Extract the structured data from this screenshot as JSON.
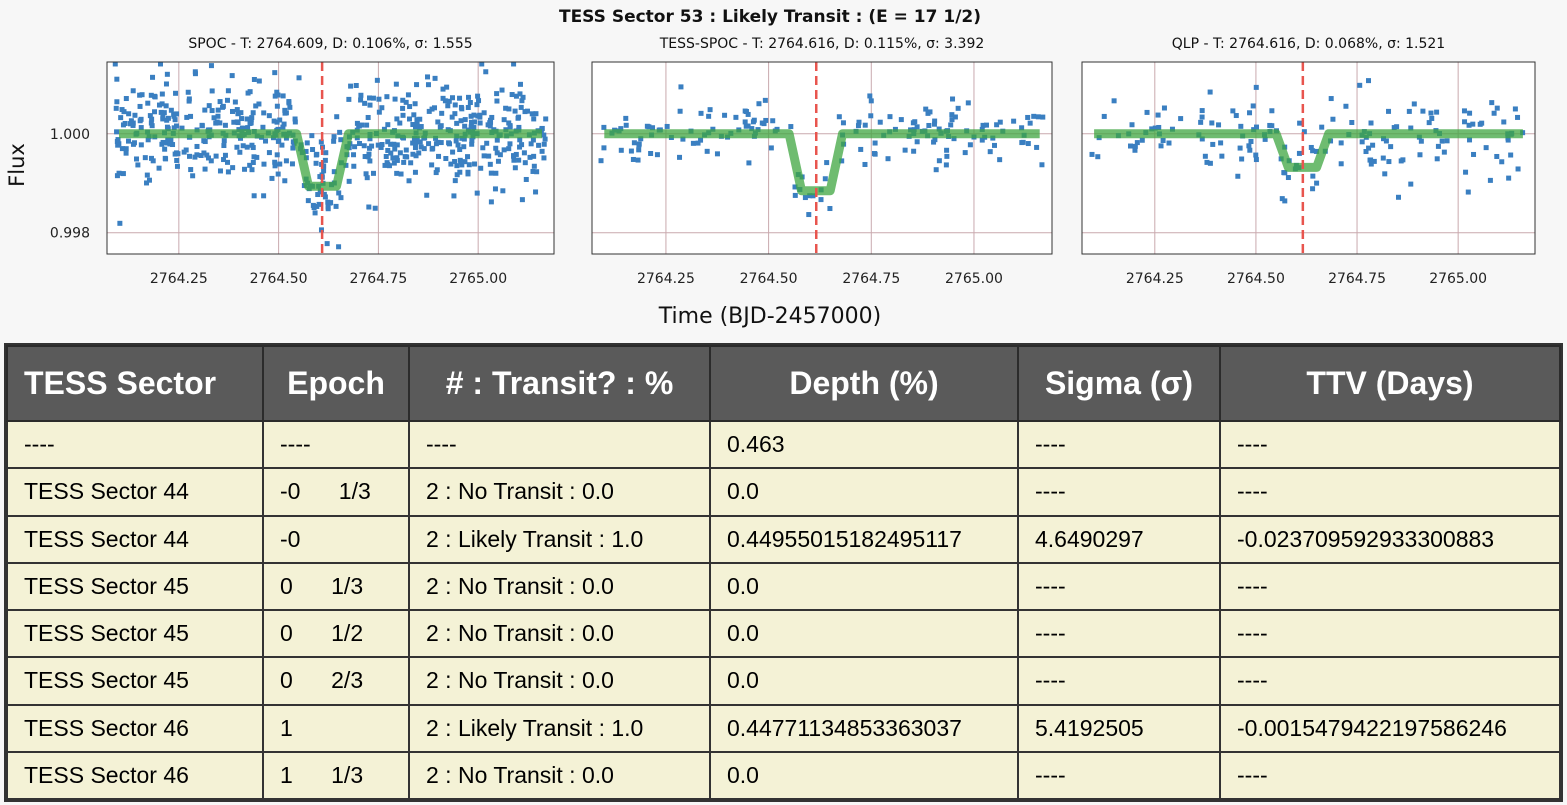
{
  "figure": {
    "suptitle": "TESS Sector 53 : Likely Transit : (E = 17     1/2)",
    "ylabel": "Flux",
    "xlabel": "Time (BJD-2457000)"
  },
  "chart_data": [
    {
      "type": "scatter",
      "title": "SPOC - T: 2764.609, D: 0.106%, σ: 1.555",
      "xlim": [
        2764.07,
        2765.19
      ],
      "ylim": [
        0.99757,
        1.00145
      ],
      "xticks": [
        "2764.25",
        "2764.50",
        "2764.75",
        "2765.00"
      ],
      "yticks": [
        "0.998",
        "1.000"
      ],
      "grid": true,
      "transit_time": 2764.609,
      "model": {
        "baseline": 1.0,
        "depth": 0.00106,
        "ingress": 2764.555,
        "egress": 2764.665
      },
      "points": {
        "count": 650,
        "x_range": [
          2764.09,
          2765.17
        ],
        "y_center": 1.0,
        "y_spread": 0.00052
      }
    },
    {
      "type": "scatter",
      "title": "TESS-SPOC - T: 2764.616, D: 0.115%, σ: 3.392",
      "xlim": [
        2764.07,
        2765.19
      ],
      "ylim": [
        0.99757,
        1.00145
      ],
      "xticks": [
        "2764.25",
        "2764.50",
        "2764.75",
        "2765.00"
      ],
      "yticks": [
        "0.998",
        "1.000"
      ],
      "grid": true,
      "transit_time": 2764.616,
      "model": {
        "baseline": 1.0,
        "depth": 0.00115,
        "ingress": 2764.56,
        "egress": 2764.67
      },
      "points": {
        "count": 180,
        "x_range": [
          2764.09,
          2765.17
        ],
        "y_center": 1.0,
        "y_spread": 0.0003
      }
    },
    {
      "type": "scatter",
      "title": "QLP - T: 2764.616, D: 0.068%, σ: 1.521",
      "xlim": [
        2764.07,
        2765.19
      ],
      "ylim": [
        0.99757,
        1.00145
      ],
      "xticks": [
        "2764.25",
        "2764.50",
        "2764.75",
        "2765.00"
      ],
      "yticks": [
        "0.998",
        "1.000"
      ],
      "grid": true,
      "transit_time": 2764.616,
      "model": {
        "baseline": 1.0,
        "depth": 0.00068,
        "ingress": 2764.56,
        "egress": 2764.67
      },
      "points": {
        "count": 170,
        "x_range": [
          2764.09,
          2765.17
        ],
        "y_center": 1.0,
        "y_spread": 0.00045
      }
    }
  ],
  "table": {
    "headers": [
      "TESS Sector",
      "Epoch",
      "# : Transit? : %",
      "Depth (%)",
      "Sigma (σ)",
      "TTV (Days)"
    ],
    "rows": [
      [
        "----",
        "----",
        "----",
        "0.463",
        "----",
        "----"
      ],
      [
        "TESS Sector 44",
        "-0      1/3",
        "2 : No Transit : 0.0",
        "0.0",
        "----",
        "----"
      ],
      [
        "TESS Sector 44",
        "-0",
        "2 : Likely Transit : 1.0",
        "0.44955015182495117",
        "4.6490297",
        "-0.023709592933300883"
      ],
      [
        "TESS Sector 45",
        "0      1/3",
        "2 : No Transit : 0.0",
        "0.0",
        "----",
        "----"
      ],
      [
        "TESS Sector 45",
        "0      1/2",
        "2 : No Transit : 0.0",
        "0.0",
        "----",
        "----"
      ],
      [
        "TESS Sector 45",
        "0      2/3",
        "2 : No Transit : 0.0",
        "0.0",
        "----",
        "----"
      ],
      [
        "TESS Sector 46",
        "1",
        "2 : Likely Transit : 1.0",
        "0.44771134853363037",
        "5.4192505",
        "-0.0015479422197586246"
      ],
      [
        "TESS Sector 46",
        "1      1/3",
        "2 : No Transit : 0.0",
        "0.0",
        "----",
        "----"
      ]
    ]
  },
  "colors": {
    "points": "#3a7fc1",
    "model": "#3fa540",
    "transit_marker": "#e8554e",
    "grid": "#c9a9ae",
    "header_bg": "#5a5a5a",
    "row_bg": "#f4f2d6"
  }
}
